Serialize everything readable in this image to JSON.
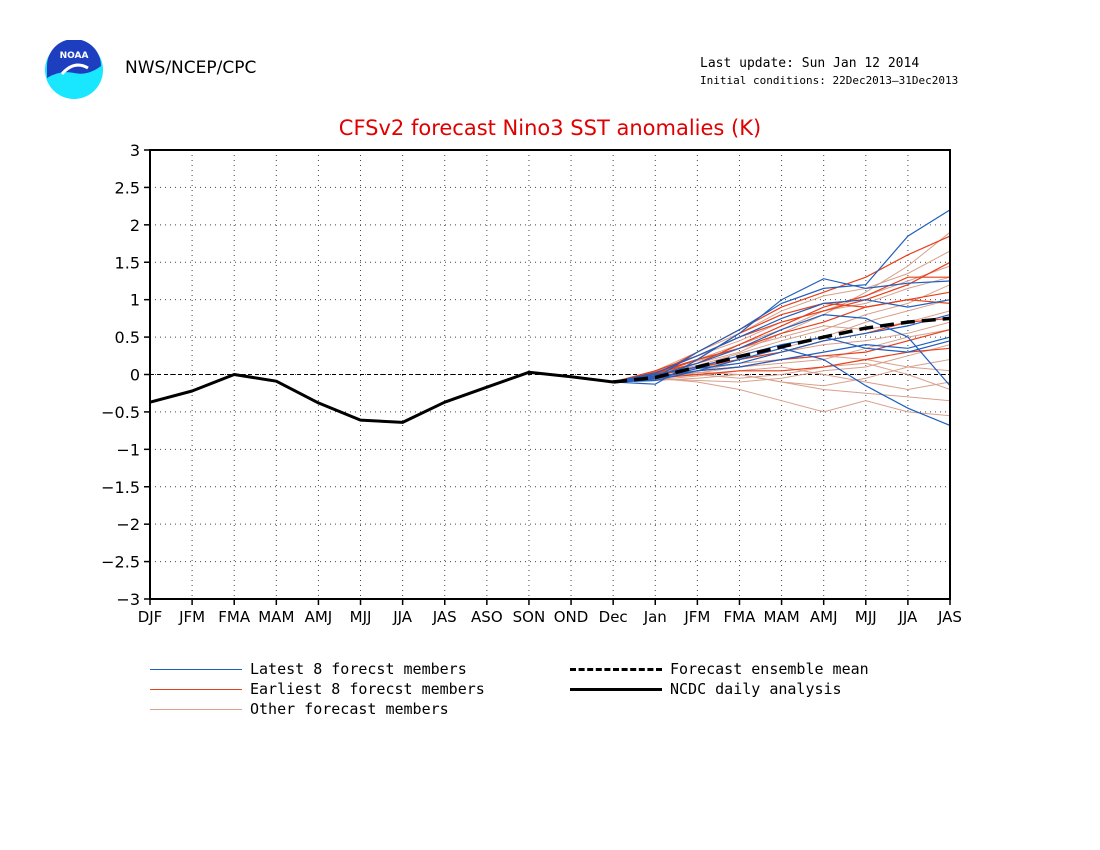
{
  "header": {
    "org": "NWS/NCEP/CPC",
    "last_update": "Last update: Sun Jan 12 2014",
    "initial_conditions": "Initial conditions: 22Dec2013–31Dec2013",
    "logo_text": "NOAA"
  },
  "colors": {
    "latest": "#1f5fbf",
    "earliest": "#e8401c",
    "other": "#d9a08c",
    "analysis": "#000000",
    "title": "#e00000",
    "logo_blue": "#1d3fbf",
    "logo_cyan": "#19e6ff"
  },
  "chart_data": {
    "type": "line",
    "title": "CFSv2 forecast Nino3 SST anomalies (K)",
    "categories": [
      "DJF",
      "JFM",
      "FMA",
      "MAM",
      "AMJ",
      "MJJ",
      "JJA",
      "JAS",
      "ASO",
      "SON",
      "OND",
      "Dec",
      "Jan",
      "JFM",
      "FMA",
      "MAM",
      "AMJ",
      "MJJ",
      "JJA",
      "JAS"
    ],
    "ylim": [
      -3,
      3
    ],
    "yticks": [
      "3",
      "2.5",
      "2",
      "1.5",
      "1",
      "0.5",
      "0",
      "−0.5",
      "−1",
      "−1.5",
      "−2",
      "−2.5",
      "−3"
    ],
    "ytick_values": [
      3,
      2.5,
      2,
      1.5,
      1,
      0.5,
      0,
      -0.5,
      -1,
      -1.5,
      -2,
      -2.5,
      -3
    ],
    "grid": true,
    "zero_line": true,
    "analysis": {
      "name": "NCDC daily analysis",
      "values": [
        -0.37,
        -0.22,
        0.0,
        -0.09,
        -0.38,
        -0.61,
        -0.64,
        -0.37,
        -0.17,
        0.03,
        -0.03,
        -0.1
      ]
    },
    "ensemble_mean": {
      "name": "Forecast ensemble mean",
      "start_index": 11,
      "values": [
        -0.1,
        -0.04,
        0.1,
        0.24,
        0.37,
        0.5,
        0.62,
        0.7,
        0.75
      ]
    },
    "members_start_index": 11,
    "latest_members": {
      "name": "Latest 8 forecst members",
      "series": [
        [
          -0.1,
          -0.13,
          0.2,
          0.55,
          1.0,
          1.28,
          1.15,
          1.22,
          1.25
        ],
        [
          -0.1,
          -0.08,
          0.05,
          0.2,
          0.35,
          0.2,
          -0.15,
          -0.45,
          -0.68
        ],
        [
          -0.1,
          -0.05,
          0.3,
          0.6,
          0.95,
          1.15,
          1.2,
          1.85,
          2.2
        ],
        [
          -0.1,
          0.0,
          0.1,
          0.25,
          0.4,
          0.5,
          0.35,
          0.3,
          0.45
        ],
        [
          -0.1,
          -0.02,
          0.15,
          0.35,
          0.6,
          0.8,
          0.75,
          0.5,
          -0.15
        ],
        [
          -0.1,
          -0.06,
          0.08,
          0.15,
          0.3,
          0.45,
          0.55,
          0.65,
          0.8
        ],
        [
          -0.1,
          0.02,
          0.25,
          0.5,
          0.75,
          0.95,
          1.0,
          0.9,
          1.0
        ],
        [
          -0.1,
          -0.03,
          0.05,
          0.1,
          0.2,
          0.3,
          0.4,
          0.35,
          0.5
        ]
      ]
    },
    "earliest_members": {
      "name": "Earliest 8 forecst members",
      "series": [
        [
          -0.1,
          0.0,
          0.3,
          0.6,
          0.9,
          1.1,
          1.3,
          1.6,
          1.85
        ],
        [
          -0.1,
          0.05,
          0.25,
          0.5,
          0.7,
          0.85,
          1.0,
          1.2,
          1.5
        ],
        [
          -0.1,
          -0.02,
          0.1,
          0.2,
          0.3,
          0.45,
          0.55,
          0.7,
          0.75
        ],
        [
          -0.1,
          0.03,
          0.2,
          0.35,
          0.55,
          0.7,
          0.9,
          1.0,
          1.1
        ],
        [
          -0.1,
          -0.05,
          0.0,
          0.05,
          0.05,
          0.1,
          0.2,
          0.3,
          0.35
        ],
        [
          -0.1,
          0.02,
          0.15,
          0.4,
          0.65,
          0.9,
          1.05,
          1.3,
          1.3
        ],
        [
          -0.1,
          -0.04,
          0.05,
          0.1,
          0.2,
          0.25,
          0.3,
          0.45,
          0.6
        ],
        [
          -0.1,
          0.0,
          0.2,
          0.55,
          0.8,
          0.95,
          0.9,
          1.0,
          0.95
        ]
      ]
    },
    "other_members": {
      "name": "Other forecast members",
      "series": [
        [
          -0.1,
          -0.05,
          -0.1,
          -0.2,
          -0.35,
          -0.5,
          -0.35,
          -0.5,
          -0.55
        ],
        [
          -0.1,
          0.0,
          0.15,
          0.3,
          0.55,
          0.8,
          1.1,
          1.45,
          1.9
        ],
        [
          -0.1,
          -0.08,
          -0.05,
          0.0,
          -0.1,
          -0.2,
          -0.25,
          -0.3,
          -0.35
        ],
        [
          -0.1,
          0.02,
          0.2,
          0.4,
          0.6,
          0.85,
          1.05,
          1.25,
          1.45
        ],
        [
          -0.1,
          -0.03,
          0.05,
          0.15,
          0.2,
          0.25,
          0.2,
          0.1,
          0.05
        ],
        [
          -0.1,
          0.0,
          0.1,
          0.2,
          0.35,
          0.5,
          0.7,
          0.85,
          1.0
        ],
        [
          -0.1,
          -0.02,
          0.0,
          -0.05,
          0.0,
          0.1,
          0.15,
          0.0,
          -0.2
        ],
        [
          -0.1,
          0.04,
          0.25,
          0.45,
          0.7,
          0.85,
          0.95,
          1.15,
          1.3
        ],
        [
          -0.1,
          -0.06,
          -0.08,
          -0.1,
          -0.05,
          0.05,
          0.1,
          0.25,
          0.4
        ],
        [
          -0.1,
          0.01,
          0.12,
          0.28,
          0.45,
          0.6,
          0.8,
          0.95,
          1.2
        ],
        [
          -0.1,
          -0.04,
          0.02,
          0.1,
          0.15,
          0.2,
          0.35,
          0.5,
          0.6
        ],
        [
          -0.1,
          0.03,
          0.18,
          0.35,
          0.5,
          0.65,
          0.6,
          0.7,
          0.85
        ],
        [
          -0.1,
          -0.07,
          -0.02,
          0.05,
          0.1,
          0.0,
          -0.1,
          -0.2,
          -0.1
        ],
        [
          -0.1,
          0.0,
          0.08,
          0.2,
          0.3,
          0.4,
          0.45,
          0.55,
          0.7
        ],
        [
          -0.1,
          0.05,
          0.3,
          0.55,
          0.85,
          1.05,
          1.15,
          1.35,
          1.65
        ],
        [
          -0.1,
          -0.03,
          0.03,
          0.0,
          -0.1,
          -0.15,
          -0.05,
          0.1,
          0.2
        ]
      ]
    }
  },
  "legend": {
    "latest": "Latest 8 forecst members",
    "earliest": "Earliest 8 forecst members",
    "other": "Other forecast members",
    "mean": "Forecast ensemble mean",
    "analysis": "NCDC daily analysis"
  }
}
